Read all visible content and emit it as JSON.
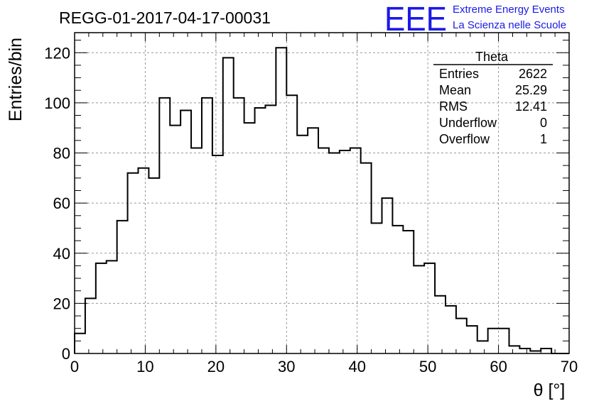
{
  "header": {
    "title": "REGG-01-2017-04-17-00031",
    "logo": "EEE",
    "logo_line1": "Extreme Energy Events",
    "logo_line2": "La Scienza nelle Scuole"
  },
  "stats_box": {
    "title": "Theta",
    "rows": [
      {
        "label": "Entries",
        "value": "2622"
      },
      {
        "label": "Mean",
        "value": "25.29"
      },
      {
        "label": "RMS",
        "value": "12.41"
      },
      {
        "label": "Underflow",
        "value": "0"
      },
      {
        "label": "Overflow",
        "value": "1"
      }
    ]
  },
  "colors": {
    "line": "#000000",
    "grid": "#999999",
    "logo": "#1a1ae6"
  },
  "chart_data": {
    "type": "bar",
    "style": "step-histogram",
    "xlabel": "θ [°]",
    "ylabel": "Entries/bin",
    "xlim": [
      0,
      70
    ],
    "ylim": [
      0,
      128
    ],
    "bin_width": 1.5,
    "grid": true,
    "x_ticks": [
      0,
      10,
      20,
      30,
      40,
      50,
      60,
      70
    ],
    "y_ticks": [
      0,
      20,
      40,
      60,
      80,
      100,
      120
    ],
    "values": [
      8,
      22,
      36,
      37,
      53,
      72,
      74,
      70,
      102,
      91,
      97,
      82,
      102,
      79,
      118,
      102,
      92,
      98,
      99,
      122,
      103,
      87,
      90,
      82,
      80,
      81,
      82,
      76,
      52,
      62,
      51,
      49,
      35,
      36,
      23,
      19,
      14,
      11,
      5,
      10,
      10,
      3,
      2,
      1,
      2,
      0,
      0
    ]
  }
}
